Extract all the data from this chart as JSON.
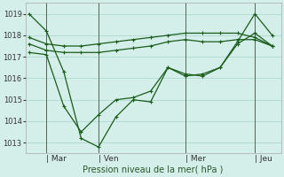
{
  "background_color": "#d4eeea",
  "grid_color": "#b0d8d2",
  "line_color": "#1a5c1a",
  "ylim": [
    1012.5,
    1019.5
  ],
  "yticks": [
    1013,
    1014,
    1015,
    1016,
    1017,
    1018,
    1019
  ],
  "xlabel": "Pression niveau de la mer( hPa )",
  "xtick_labels": [
    "| Mar",
    "| Ven",
    "| Mer",
    "| Jeu"
  ],
  "xtick_positions": [
    1,
    4,
    9,
    13
  ],
  "series1_x": [
    0,
    1,
    2,
    3,
    4,
    5,
    6,
    7,
    8,
    9,
    10,
    11,
    12,
    13,
    14
  ],
  "series1_y": [
    1019.0,
    1018.2,
    1016.3,
    1013.2,
    1012.8,
    1014.2,
    1015.0,
    1014.9,
    1016.5,
    1016.2,
    1016.1,
    1016.5,
    1017.7,
    1019.0,
    1018.0
  ],
  "series2_x": [
    0,
    1,
    2,
    3,
    4,
    5,
    6,
    7,
    8,
    9,
    10,
    11,
    12,
    13,
    14
  ],
  "series2_y": [
    1017.2,
    1017.1,
    1014.7,
    1013.5,
    1014.3,
    1015.0,
    1015.1,
    1015.4,
    1016.5,
    1016.1,
    1016.2,
    1016.5,
    1017.6,
    1018.1,
    1017.5
  ],
  "series3_x": [
    0,
    1,
    2,
    3,
    4,
    5,
    6,
    7,
    8,
    9,
    10,
    11,
    12,
    13,
    14
  ],
  "series3_y": [
    1017.6,
    1017.3,
    1017.2,
    1017.2,
    1017.2,
    1017.3,
    1017.4,
    1017.5,
    1017.7,
    1017.8,
    1017.7,
    1017.7,
    1017.8,
    1017.8,
    1017.5
  ],
  "series4_x": [
    0,
    1,
    2,
    3,
    4,
    5,
    6,
    7,
    8,
    9,
    10,
    11,
    12,
    13,
    14
  ],
  "series4_y": [
    1017.9,
    1017.6,
    1017.5,
    1017.5,
    1017.6,
    1017.7,
    1017.8,
    1017.9,
    1018.0,
    1018.1,
    1018.1,
    1018.1,
    1018.1,
    1017.9,
    1017.5
  ],
  "vline_positions": [
    1,
    4,
    9,
    13
  ],
  "marker_size": 2.5,
  "line_width": 0.9,
  "figsize": [
    3.2,
    2.0
  ],
  "dpi": 100
}
